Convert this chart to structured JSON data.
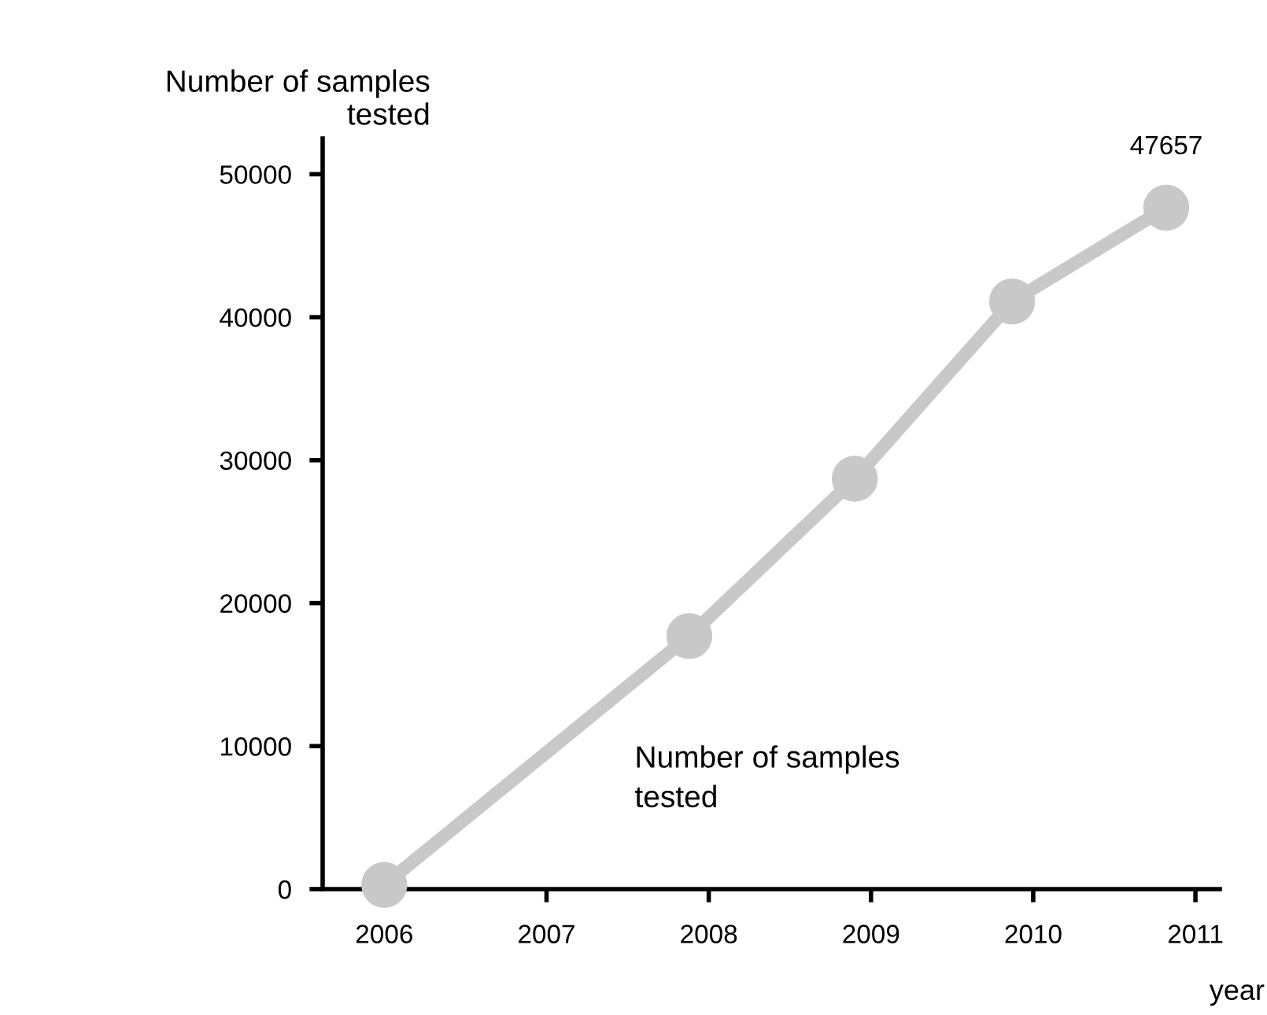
{
  "chart_data": {
    "type": "line",
    "ylabel": "Number of samples\ntested",
    "xlabel": "year",
    "xlim": [
      2005.62,
      2011.15
    ],
    "xticks": [
      2006,
      2007,
      2008,
      2009,
      2010,
      2011
    ],
    "ylim": [
      0,
      52500
    ],
    "yticks": [
      0,
      10000,
      20000,
      30000,
      40000,
      50000
    ],
    "series": [
      {
        "name": "Number of samples\ntested",
        "color": "#c8c8c8",
        "x": [
          2006,
          2007.88,
          2008.9,
          2009.87,
          2010.82
        ],
        "values": [
          300,
          17700,
          28700,
          41100,
          47657
        ],
        "value_labels": [
          null,
          null,
          null,
          null,
          "47657"
        ]
      }
    ],
    "marker": "circle",
    "line_style": "solid",
    "grid": false,
    "legend": false
  }
}
